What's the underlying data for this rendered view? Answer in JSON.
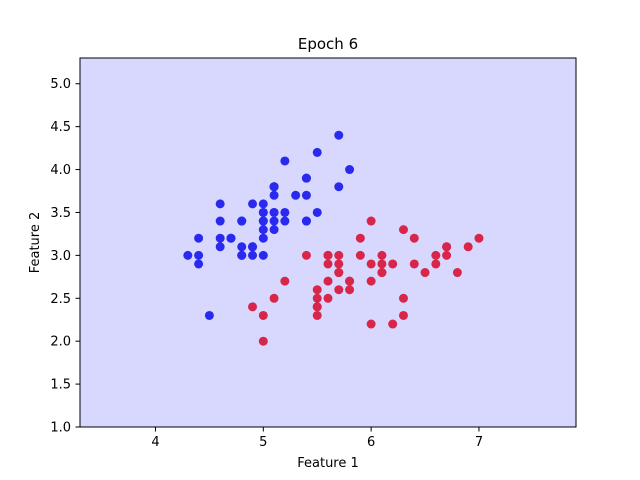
{
  "chart_data": {
    "type": "scatter",
    "title": "Epoch 6",
    "xlabel": "Feature 1",
    "ylabel": "Feature 2",
    "xlim": [
      3.3,
      7.9
    ],
    "ylim": [
      1.0,
      5.3
    ],
    "xticks": [
      4,
      5,
      6,
      7
    ],
    "yticks": [
      1.0,
      1.5,
      2.0,
      2.5,
      3.0,
      3.5,
      4.0,
      4.5,
      5.0
    ],
    "xtick_labels": [
      "4",
      "5",
      "6",
      "7"
    ],
    "ytick_labels": [
      "1.0",
      "1.5",
      "2.0",
      "2.5",
      "3.0",
      "3.5",
      "4.0",
      "4.5",
      "5.0"
    ],
    "grid": false,
    "background_color": "#d8d8ff",
    "series": [
      {
        "color": "#2a2aee",
        "points": [
          [
            5.1,
            3.5
          ],
          [
            4.9,
            3.0
          ],
          [
            4.7,
            3.2
          ],
          [
            4.6,
            3.1
          ],
          [
            5.0,
            3.6
          ],
          [
            5.4,
            3.9
          ],
          [
            4.6,
            3.4
          ],
          [
            5.0,
            3.4
          ],
          [
            4.4,
            2.9
          ],
          [
            4.9,
            3.1
          ],
          [
            5.4,
            3.7
          ],
          [
            4.8,
            3.4
          ],
          [
            4.8,
            3.0
          ],
          [
            4.3,
            3.0
          ],
          [
            5.8,
            4.0
          ],
          [
            5.7,
            4.4
          ],
          [
            5.4,
            3.9
          ],
          [
            5.1,
            3.5
          ],
          [
            5.7,
            3.8
          ],
          [
            5.1,
            3.8
          ],
          [
            5.4,
            3.4
          ],
          [
            5.1,
            3.7
          ],
          [
            4.6,
            3.6
          ],
          [
            5.1,
            3.3
          ],
          [
            4.8,
            3.4
          ],
          [
            5.0,
            3.0
          ],
          [
            5.0,
            3.4
          ],
          [
            5.2,
            3.5
          ],
          [
            5.2,
            3.4
          ],
          [
            4.7,
            3.2
          ],
          [
            4.8,
            3.1
          ],
          [
            5.4,
            3.4
          ],
          [
            5.2,
            4.1
          ],
          [
            5.5,
            4.2
          ],
          [
            4.9,
            3.1
          ],
          [
            5.0,
            3.2
          ],
          [
            5.5,
            3.5
          ],
          [
            4.9,
            3.6
          ],
          [
            4.4,
            3.0
          ],
          [
            5.1,
            3.4
          ],
          [
            5.0,
            3.5
          ],
          [
            4.5,
            2.3
          ],
          [
            4.4,
            3.2
          ],
          [
            5.0,
            3.5
          ],
          [
            5.1,
            3.8
          ],
          [
            4.8,
            3.0
          ],
          [
            5.1,
            3.8
          ],
          [
            4.6,
            3.2
          ],
          [
            5.3,
            3.7
          ],
          [
            5.0,
            3.3
          ]
        ]
      },
      {
        "color": "#d8264a",
        "points": [
          [
            7.0,
            3.2
          ],
          [
            6.4,
            3.2
          ],
          [
            6.9,
            3.1
          ],
          [
            5.5,
            2.3
          ],
          [
            6.5,
            2.8
          ],
          [
            5.7,
            2.8
          ],
          [
            6.3,
            3.3
          ],
          [
            4.9,
            2.4
          ],
          [
            6.6,
            2.9
          ],
          [
            5.2,
            2.7
          ],
          [
            5.0,
            2.0
          ],
          [
            5.9,
            3.0
          ],
          [
            6.0,
            2.2
          ],
          [
            6.1,
            2.9
          ],
          [
            5.6,
            2.9
          ],
          [
            6.7,
            3.1
          ],
          [
            5.6,
            3.0
          ],
          [
            5.8,
            2.7
          ],
          [
            6.2,
            2.2
          ],
          [
            5.6,
            2.5
          ],
          [
            5.9,
            3.2
          ],
          [
            6.1,
            2.8
          ],
          [
            6.3,
            2.5
          ],
          [
            6.1,
            2.8
          ],
          [
            6.4,
            2.9
          ],
          [
            6.6,
            3.0
          ],
          [
            6.8,
            2.8
          ],
          [
            6.7,
            3.0
          ],
          [
            6.0,
            2.9
          ],
          [
            5.7,
            2.6
          ],
          [
            5.5,
            2.4
          ],
          [
            5.5,
            2.4
          ],
          [
            5.8,
            2.7
          ],
          [
            6.0,
            2.7
          ],
          [
            5.4,
            3.0
          ],
          [
            6.0,
            3.4
          ],
          [
            6.7,
            3.1
          ],
          [
            6.3,
            2.3
          ],
          [
            5.6,
            3.0
          ],
          [
            5.5,
            2.5
          ],
          [
            5.5,
            2.6
          ],
          [
            6.1,
            3.0
          ],
          [
            5.8,
            2.6
          ],
          [
            5.0,
            2.3
          ],
          [
            5.6,
            2.7
          ],
          [
            5.7,
            3.0
          ],
          [
            5.7,
            2.9
          ],
          [
            6.2,
            2.9
          ],
          [
            5.1,
            2.5
          ],
          [
            5.7,
            2.8
          ]
        ]
      }
    ]
  }
}
